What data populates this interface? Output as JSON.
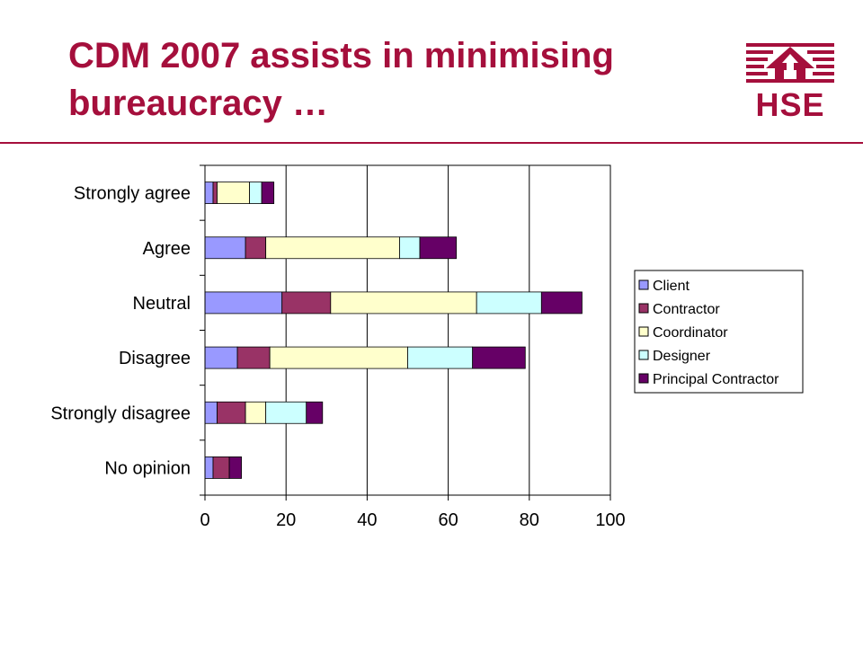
{
  "slide": {
    "title": "CDM 2007 assists in minimising bureaucracy …",
    "logo_text": "HSE",
    "accent_color": "#a50f3c"
  },
  "chart_data": {
    "type": "bar",
    "orientation": "horizontal",
    "stacked": true,
    "title": "",
    "xlabel": "",
    "ylabel": "",
    "xlim": [
      0,
      100
    ],
    "x_ticks": [
      0,
      20,
      40,
      60,
      80,
      100
    ],
    "grid": "vertical-major",
    "legend_position": "right",
    "categories": [
      "Strongly agree",
      "Agree",
      "Neutral",
      "Disagree",
      "Strongly disagree",
      "No opinion"
    ],
    "series": [
      {
        "name": "Client",
        "color": "#9999ff",
        "values": [
          2,
          10,
          19,
          8,
          3,
          2
        ]
      },
      {
        "name": "Contractor",
        "color": "#993366",
        "values": [
          1,
          5,
          12,
          8,
          7,
          4
        ]
      },
      {
        "name": "Coordinator",
        "color": "#ffffcc",
        "values": [
          8,
          33,
          36,
          34,
          5,
          0
        ]
      },
      {
        "name": "Designer",
        "color": "#ccffff",
        "values": [
          3,
          5,
          16,
          16,
          10,
          0
        ]
      },
      {
        "name": "Principal Contractor",
        "color": "#660066",
        "values": [
          3,
          9,
          10,
          13,
          4,
          3
        ]
      }
    ]
  }
}
